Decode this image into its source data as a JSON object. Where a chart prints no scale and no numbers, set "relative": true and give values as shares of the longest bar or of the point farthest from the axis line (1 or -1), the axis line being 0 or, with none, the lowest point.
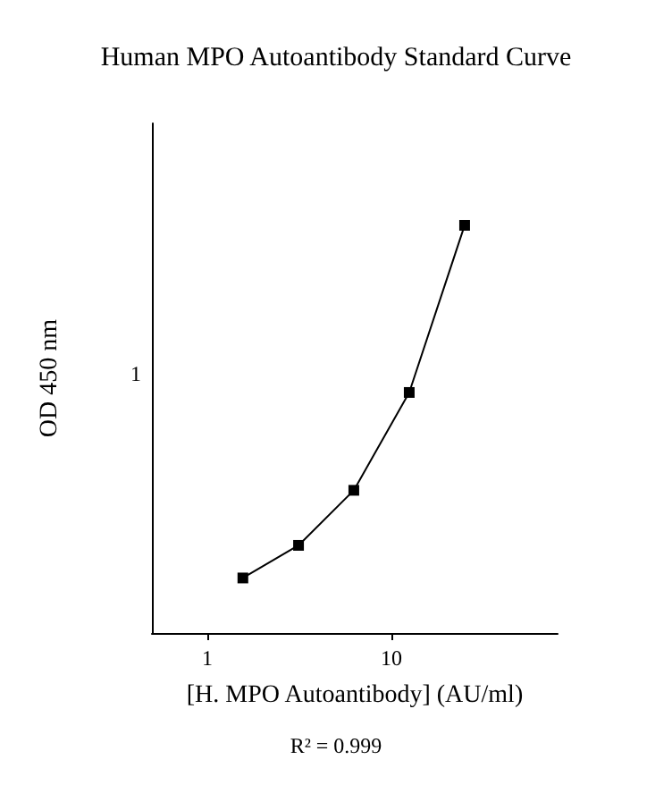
{
  "chart_data": {
    "type": "line",
    "title": "Human MPO Autoantibody Standard Curve",
    "xlabel": "[H. MPO Autoantibody] (AU/ml)",
    "ylabel": "OD 450 nm",
    "annotations": [
      "R² = 0.999",
      "1"
    ],
    "relative": true,
    "x": [
      1.56,
      3.13,
      6.25,
      12.5,
      25
    ],
    "series": [
      {
        "color": "#000000",
        "values": [
          0.135,
          0.215,
          0.35,
          0.59,
          1
        ]
      }
    ],
    "log": "x",
    "xlim": [
      0.5,
      80
    ],
    "xticks": [
      1,
      10
    ],
    "grid": false,
    "marker": "square",
    "line_style": "solid"
  }
}
